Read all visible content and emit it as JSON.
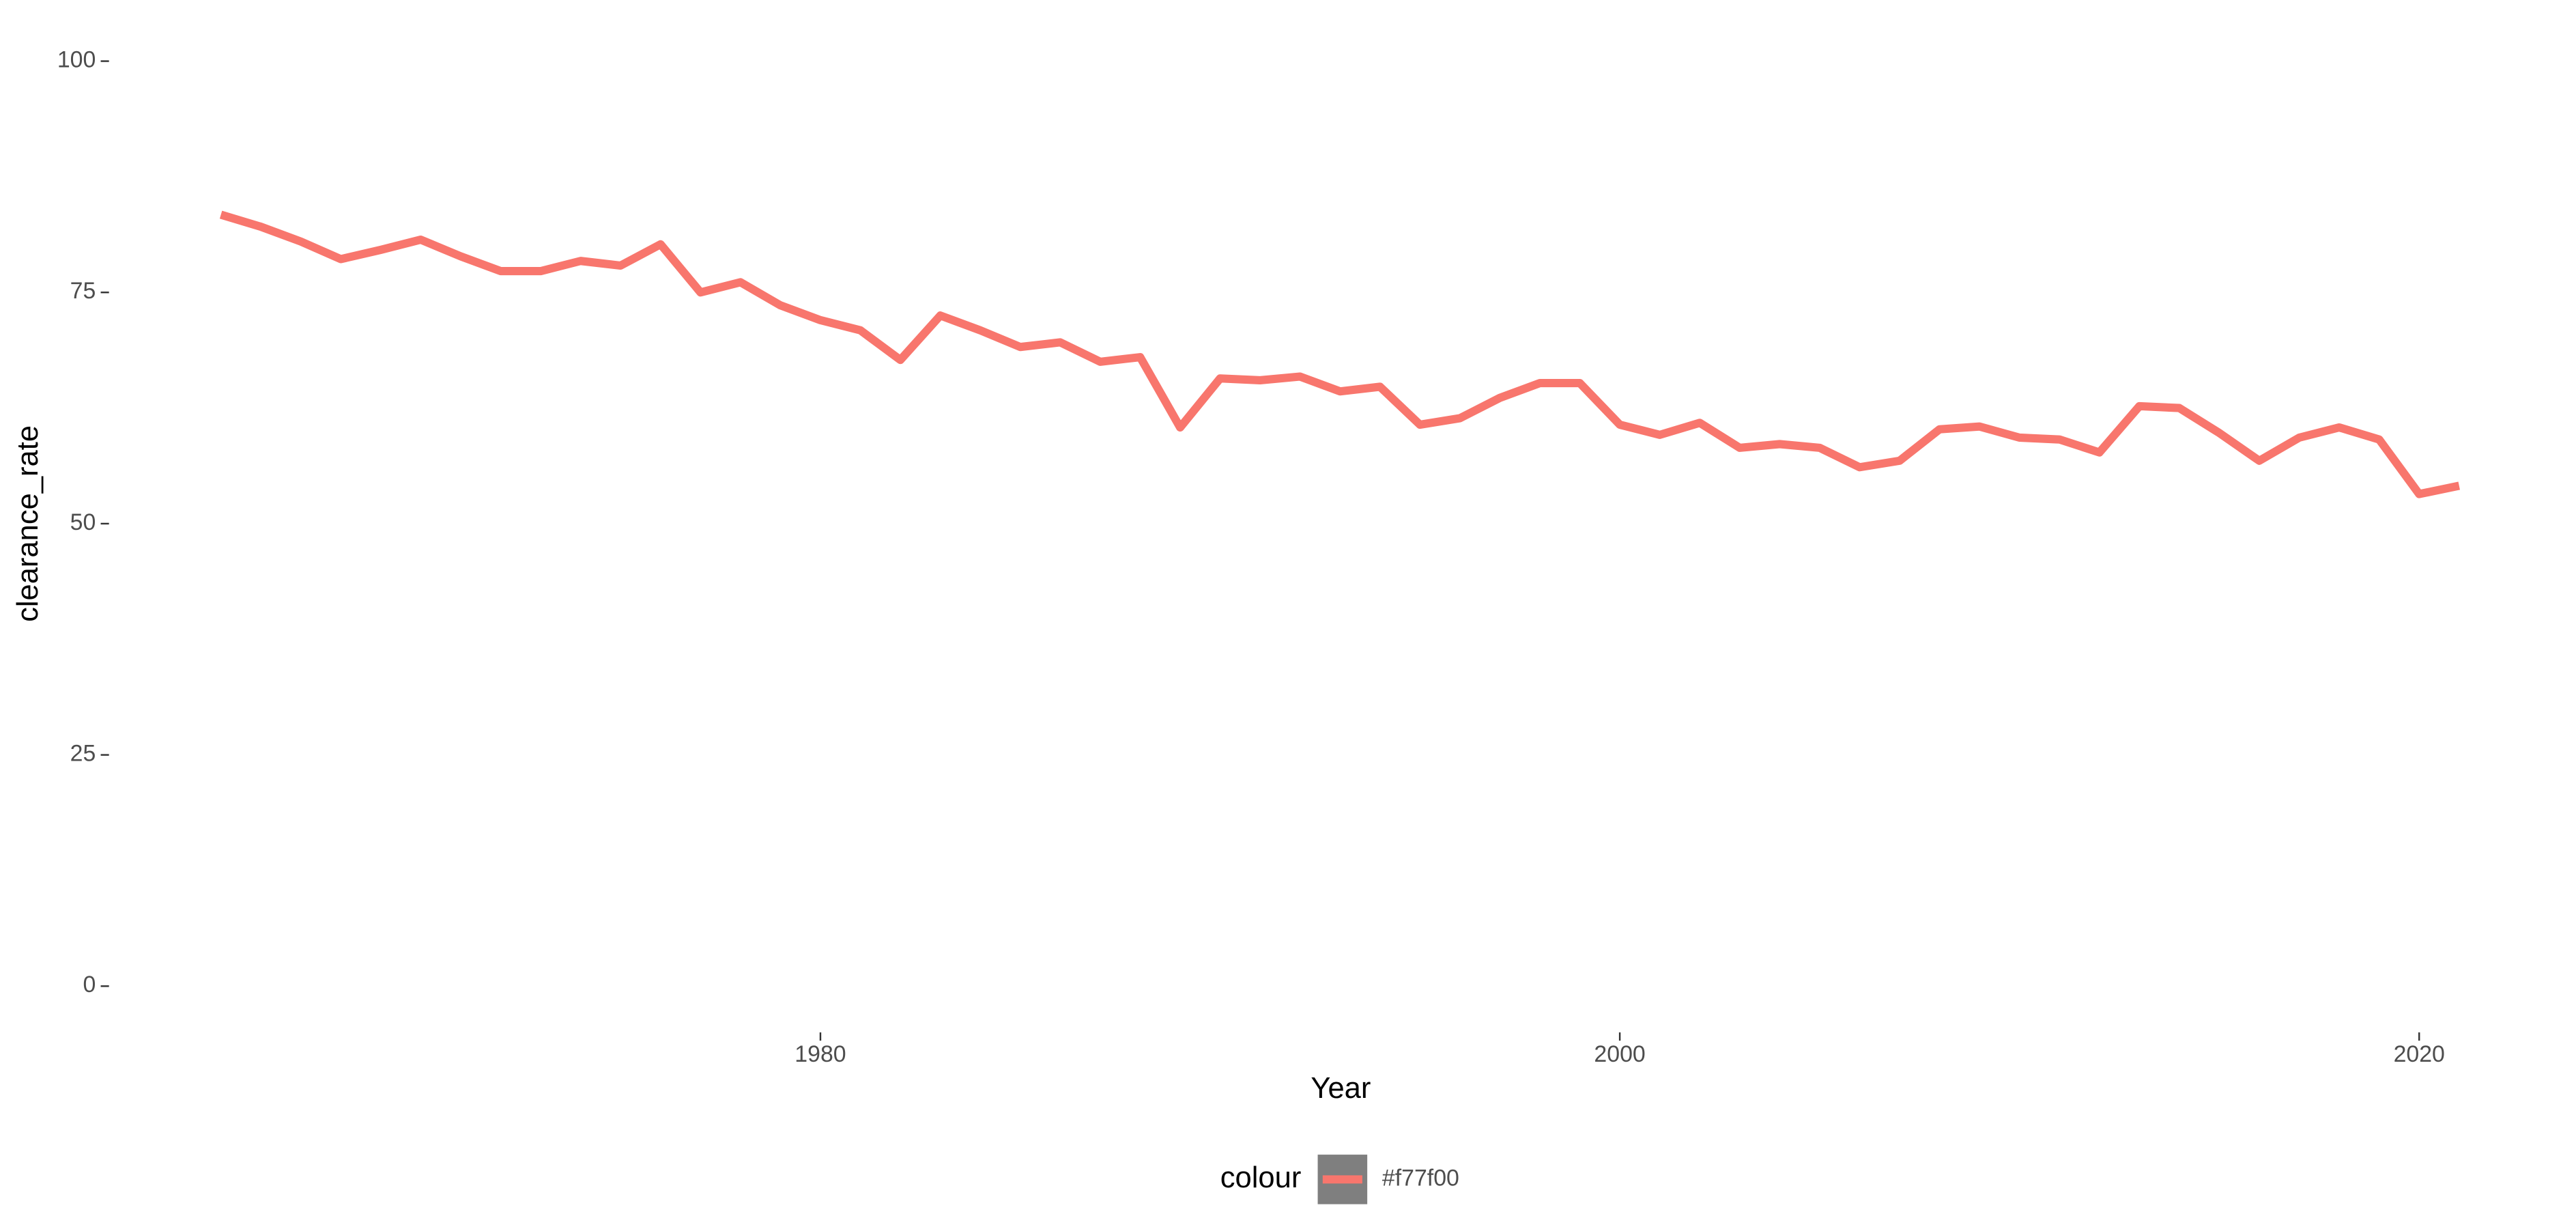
{
  "chart_data": {
    "type": "line",
    "x_label": "Year",
    "y_label": "clearance_rate",
    "x": [
      1965,
      1966,
      1967,
      1968,
      1969,
      1970,
      1971,
      1972,
      1973,
      1974,
      1975,
      1976,
      1977,
      1978,
      1979,
      1980,
      1981,
      1982,
      1983,
      1984,
      1985,
      1986,
      1987,
      1988,
      1989,
      1990,
      1991,
      1992,
      1993,
      1994,
      1995,
      1996,
      1997,
      1998,
      1999,
      2000,
      2001,
      2002,
      2003,
      2004,
      2005,
      2006,
      2007,
      2008,
      2009,
      2010,
      2011,
      2012,
      2013,
      2014,
      2015,
      2016,
      2017,
      2018,
      2019,
      2020,
      2021
    ],
    "series": [
      {
        "name": "#f77f00",
        "color": "#f8766d",
        "values": [
          83.4,
          82.1,
          80.5,
          78.6,
          79.6,
          80.7,
          78.9,
          77.3,
          77.3,
          78.4,
          77.9,
          80.2,
          75.0,
          76.1,
          73.6,
          72.0,
          70.9,
          67.7,
          72.5,
          70.9,
          69.1,
          69.6,
          67.5,
          68.0,
          60.4,
          65.7,
          65.5,
          65.9,
          64.3,
          64.8,
          60.7,
          61.4,
          63.6,
          65.2,
          65.2,
          60.7,
          59.6,
          60.9,
          58.2,
          58.6,
          58.2,
          56.1,
          56.8,
          60.2,
          60.5,
          59.3,
          59.1,
          57.7,
          62.7,
          62.5,
          59.8,
          56.8,
          59.3,
          60.4,
          59.1,
          53.2,
          54.1
        ]
      }
    ],
    "xlim": [
      1962.2,
      2023.8
    ],
    "xticks": [
      1980,
      2000,
      2020
    ],
    "ylim": [
      -5,
      105
    ],
    "yticks": [
      0,
      25,
      50,
      75,
      100
    ],
    "grid": false,
    "legend_title": "colour",
    "legend_position": "bottom",
    "legend_key_fill": "#7f7f7f"
  }
}
